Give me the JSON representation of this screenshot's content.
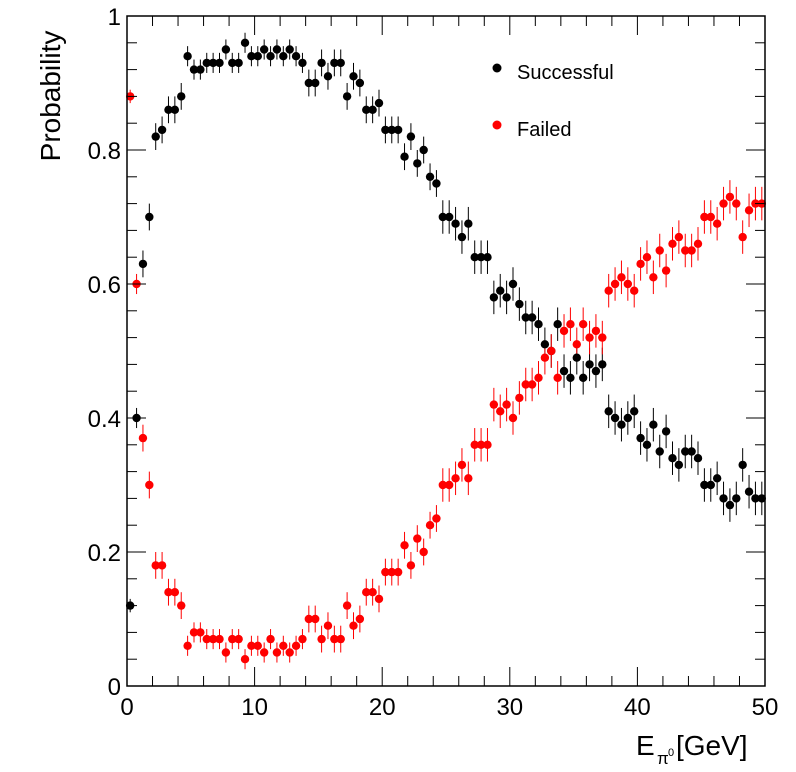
{
  "chart_data": {
    "type": "scatter",
    "title": "",
    "xlabel_main": "E",
    "xlabel_sub": "π",
    "xlabel_sup": "0",
    "xlabel_unit": "[GeV]",
    "ylabel": "Probability",
    "xlim": [
      0,
      50
    ],
    "ylim": [
      0,
      1
    ],
    "x_ticks": [
      "0",
      "10",
      "20",
      "30",
      "40",
      "50"
    ],
    "y_ticks": [
      "0",
      "0.2",
      "0.4",
      "0.6",
      "0.8",
      "1"
    ],
    "legend_position": "top-right",
    "series": [
      {
        "name": "Successful",
        "color": "#000000",
        "x": [
          0.25,
          0.75,
          1.25,
          1.75,
          2.25,
          2.75,
          3.25,
          3.75,
          4.25,
          4.75,
          5.25,
          5.75,
          6.25,
          6.75,
          7.25,
          7.75,
          8.25,
          8.75,
          9.25,
          9.75,
          10.25,
          10.75,
          11.25,
          11.75,
          12.25,
          12.75,
          13.25,
          13.75,
          14.25,
          14.75,
          15.25,
          15.75,
          16.25,
          16.75,
          17.25,
          17.75,
          18.25,
          18.75,
          19.25,
          19.75,
          20.25,
          20.75,
          21.25,
          21.75,
          22.25,
          22.75,
          23.25,
          23.75,
          24.25,
          24.75,
          25.25,
          25.75,
          26.25,
          26.75,
          27.25,
          27.75,
          28.25,
          28.75,
          29.25,
          29.75,
          30.25,
          30.75,
          31.25,
          31.75,
          32.25,
          32.75,
          33.25,
          33.75,
          34.25,
          34.75,
          35.25,
          35.75,
          36.25,
          36.75,
          37.25,
          37.75,
          38.25,
          38.75,
          39.25,
          39.75,
          40.25,
          40.75,
          41.25,
          41.75,
          42.25,
          42.75,
          43.25,
          43.75,
          44.25,
          44.75,
          45.25,
          45.75,
          46.25,
          46.75,
          47.25,
          47.75,
          48.25,
          48.75,
          49.25,
          49.75
        ],
        "y": [
          0.12,
          0.4,
          0.63,
          0.7,
          0.82,
          0.83,
          0.86,
          0.86,
          0.88,
          0.94,
          0.92,
          0.92,
          0.93,
          0.93,
          0.93,
          0.95,
          0.93,
          0.93,
          0.96,
          0.94,
          0.94,
          0.95,
          0.94,
          0.95,
          0.94,
          0.95,
          0.94,
          0.93,
          0.9,
          0.9,
          0.93,
          0.91,
          0.93,
          0.93,
          0.88,
          0.91,
          0.9,
          0.86,
          0.86,
          0.87,
          0.83,
          0.83,
          0.83,
          0.79,
          0.82,
          0.78,
          0.8,
          0.76,
          0.75,
          0.7,
          0.7,
          0.69,
          0.67,
          0.69,
          0.64,
          0.64,
          0.64,
          0.58,
          0.59,
          0.58,
          0.6,
          0.57,
          0.55,
          0.55,
          0.54,
          0.51,
          0.5,
          0.54,
          0.47,
          0.46,
          0.49,
          0.46,
          0.48,
          0.47,
          0.48,
          0.41,
          0.4,
          0.39,
          0.4,
          0.41,
          0.37,
          0.36,
          0.39,
          0.35,
          0.38,
          0.34,
          0.33,
          0.35,
          0.35,
          0.34,
          0.3,
          0.3,
          0.31,
          0.28,
          0.27,
          0.28,
          0.33,
          0.29,
          0.28,
          0.28
        ],
        "err": [
          0.01,
          0.015,
          0.02,
          0.02,
          0.02,
          0.02,
          0.02,
          0.02,
          0.02,
          0.015,
          0.015,
          0.015,
          0.015,
          0.015,
          0.015,
          0.015,
          0.015,
          0.015,
          0.015,
          0.015,
          0.015,
          0.015,
          0.015,
          0.015,
          0.015,
          0.015,
          0.015,
          0.015,
          0.02,
          0.02,
          0.02,
          0.02,
          0.02,
          0.02,
          0.02,
          0.02,
          0.02,
          0.02,
          0.02,
          0.02,
          0.02,
          0.02,
          0.02,
          0.02,
          0.02,
          0.02,
          0.02,
          0.02,
          0.02,
          0.025,
          0.025,
          0.025,
          0.025,
          0.025,
          0.025,
          0.025,
          0.025,
          0.025,
          0.025,
          0.025,
          0.025,
          0.025,
          0.025,
          0.025,
          0.025,
          0.025,
          0.025,
          0.025,
          0.025,
          0.025,
          0.025,
          0.025,
          0.025,
          0.025,
          0.025,
          0.025,
          0.025,
          0.025,
          0.025,
          0.025,
          0.025,
          0.025,
          0.025,
          0.025,
          0.025,
          0.025,
          0.025,
          0.025,
          0.025,
          0.025,
          0.025,
          0.025,
          0.025,
          0.025,
          0.025,
          0.025,
          0.025,
          0.025,
          0.025,
          0.025
        ]
      },
      {
        "name": "Failed",
        "color": "#ff0000",
        "x": [
          0.25,
          0.75,
          1.25,
          1.75,
          2.25,
          2.75,
          3.25,
          3.75,
          4.25,
          4.75,
          5.25,
          5.75,
          6.25,
          6.75,
          7.25,
          7.75,
          8.25,
          8.75,
          9.25,
          9.75,
          10.25,
          10.75,
          11.25,
          11.75,
          12.25,
          12.75,
          13.25,
          13.75,
          14.25,
          14.75,
          15.25,
          15.75,
          16.25,
          16.75,
          17.25,
          17.75,
          18.25,
          18.75,
          19.25,
          19.75,
          20.25,
          20.75,
          21.25,
          21.75,
          22.25,
          22.75,
          23.25,
          23.75,
          24.25,
          24.75,
          25.25,
          25.75,
          26.25,
          26.75,
          27.25,
          27.75,
          28.25,
          28.75,
          29.25,
          29.75,
          30.25,
          30.75,
          31.25,
          31.75,
          32.25,
          32.75,
          33.25,
          33.75,
          34.25,
          34.75,
          35.25,
          35.75,
          36.25,
          36.75,
          37.25,
          37.75,
          38.25,
          38.75,
          39.25,
          39.75,
          40.25,
          40.75,
          41.25,
          41.75,
          42.25,
          42.75,
          43.25,
          43.75,
          44.25,
          44.75,
          45.25,
          45.75,
          46.25,
          46.75,
          47.25,
          47.75,
          48.25,
          48.75,
          49.25,
          49.75
        ],
        "y": [
          0.88,
          0.6,
          0.37,
          0.3,
          0.18,
          0.18,
          0.14,
          0.14,
          0.12,
          0.06,
          0.08,
          0.08,
          0.07,
          0.07,
          0.07,
          0.05,
          0.07,
          0.07,
          0.04,
          0.06,
          0.06,
          0.05,
          0.07,
          0.05,
          0.06,
          0.05,
          0.06,
          0.07,
          0.1,
          0.1,
          0.07,
          0.09,
          0.07,
          0.07,
          0.12,
          0.09,
          0.1,
          0.14,
          0.14,
          0.13,
          0.17,
          0.17,
          0.17,
          0.21,
          0.18,
          0.22,
          0.2,
          0.24,
          0.25,
          0.3,
          0.3,
          0.31,
          0.33,
          0.31,
          0.36,
          0.36,
          0.36,
          0.42,
          0.41,
          0.42,
          0.4,
          0.43,
          0.45,
          0.45,
          0.46,
          0.49,
          0.5,
          0.46,
          0.53,
          0.54,
          0.51,
          0.54,
          0.52,
          0.53,
          0.52,
          0.59,
          0.6,
          0.61,
          0.6,
          0.59,
          0.63,
          0.64,
          0.61,
          0.65,
          0.62,
          0.66,
          0.67,
          0.65,
          0.65,
          0.66,
          0.7,
          0.7,
          0.69,
          0.72,
          0.73,
          0.72,
          0.67,
          0.71,
          0.72,
          0.72
        ],
        "err": [
          0.01,
          0.015,
          0.02,
          0.02,
          0.02,
          0.02,
          0.02,
          0.02,
          0.02,
          0.015,
          0.015,
          0.015,
          0.015,
          0.015,
          0.015,
          0.015,
          0.015,
          0.015,
          0.015,
          0.015,
          0.015,
          0.015,
          0.015,
          0.015,
          0.015,
          0.015,
          0.015,
          0.015,
          0.02,
          0.02,
          0.02,
          0.02,
          0.02,
          0.02,
          0.02,
          0.02,
          0.02,
          0.02,
          0.02,
          0.02,
          0.02,
          0.02,
          0.02,
          0.02,
          0.02,
          0.02,
          0.02,
          0.02,
          0.02,
          0.025,
          0.025,
          0.025,
          0.025,
          0.025,
          0.025,
          0.025,
          0.025,
          0.025,
          0.025,
          0.025,
          0.025,
          0.025,
          0.025,
          0.025,
          0.025,
          0.025,
          0.025,
          0.025,
          0.025,
          0.025,
          0.025,
          0.025,
          0.025,
          0.025,
          0.025,
          0.025,
          0.025,
          0.025,
          0.025,
          0.025,
          0.025,
          0.025,
          0.025,
          0.025,
          0.025,
          0.025,
          0.025,
          0.025,
          0.025,
          0.025,
          0.025,
          0.025,
          0.025,
          0.025,
          0.025,
          0.025,
          0.025,
          0.025,
          0.025,
          0.025
        ]
      }
    ]
  }
}
